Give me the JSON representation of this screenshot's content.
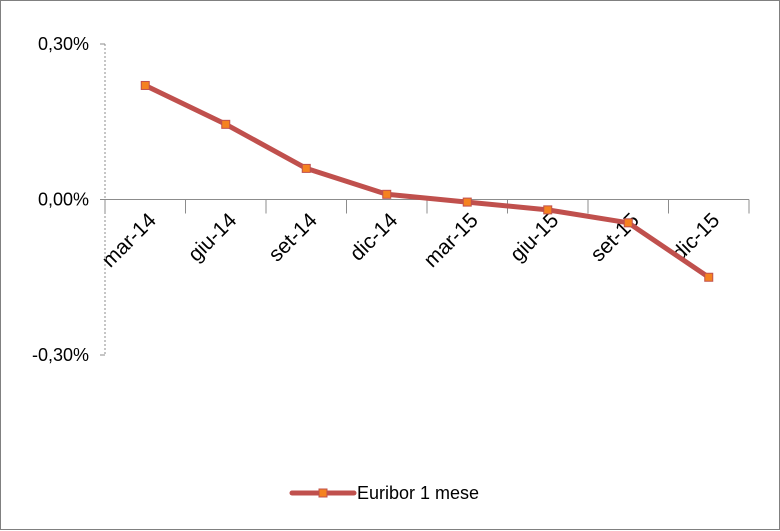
{
  "chart_data": {
    "type": "line",
    "categories": [
      "mar-14",
      "giu-14",
      "set-14",
      "dic-14",
      "mar-15",
      "giu-15",
      "set-15",
      "dic-15"
    ],
    "series": [
      {
        "name": "Euribor 1 mese",
        "values": [
          0.22,
          0.145,
          0.06,
          0.01,
          -0.005,
          -0.02,
          -0.045,
          -0.15
        ],
        "color": "#C0504D",
        "marker_color": "#F58220"
      }
    ],
    "y_ticks": [
      0.3,
      0.0,
      -0.3
    ],
    "y_tick_labels": [
      "0,30%",
      "0,00%",
      "-0,30%"
    ],
    "ylim": [
      -0.3,
      0.3
    ],
    "title": "",
    "xlabel": "",
    "ylabel": "",
    "grid": false,
    "legend_position": "bottom"
  }
}
